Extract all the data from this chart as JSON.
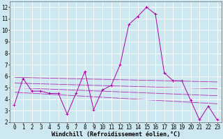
{
  "background_color": "#cde8f0",
  "line_color": "#aa00aa",
  "grid_color": "#ffffff",
  "xlabel": "Windchill (Refroidissement éolien,°C)",
  "xlabel_fontsize": 6,
  "xlim": [
    -0.5,
    23.5
  ],
  "ylim": [
    2,
    12.5
  ],
  "xticks": [
    0,
    1,
    2,
    3,
    4,
    5,
    6,
    7,
    8,
    9,
    10,
    11,
    12,
    13,
    14,
    15,
    16,
    17,
    18,
    19,
    20,
    21,
    22,
    23
  ],
  "yticks": [
    2,
    3,
    4,
    5,
    6,
    7,
    8,
    9,
    10,
    11,
    12
  ],
  "tick_fontsize": 5.5,
  "main_line": {
    "x": [
      0,
      1,
      2,
      3,
      4,
      5,
      6,
      7,
      8,
      9,
      10,
      11,
      12,
      13,
      14,
      15,
      16,
      17,
      18,
      19,
      20,
      21,
      22,
      23
    ],
    "y": [
      3.5,
      5.8,
      4.7,
      4.7,
      4.5,
      4.5,
      2.7,
      4.5,
      6.4,
      3.1,
      4.8,
      5.2,
      7.0,
      10.5,
      11.2,
      12.0,
      11.4,
      6.3,
      5.6,
      5.6,
      3.9,
      2.2,
      3.4,
      2.2
    ]
  },
  "trend_lines": [
    {
      "x": [
        0,
        23
      ],
      "y": [
        5.9,
        5.5
      ]
    },
    {
      "x": [
        0,
        23
      ],
      "y": [
        5.4,
        4.9
      ]
    },
    {
      "x": [
        0,
        23
      ],
      "y": [
        5.0,
        4.3
      ]
    },
    {
      "x": [
        0,
        23
      ],
      "y": [
        4.6,
        3.6
      ]
    }
  ]
}
